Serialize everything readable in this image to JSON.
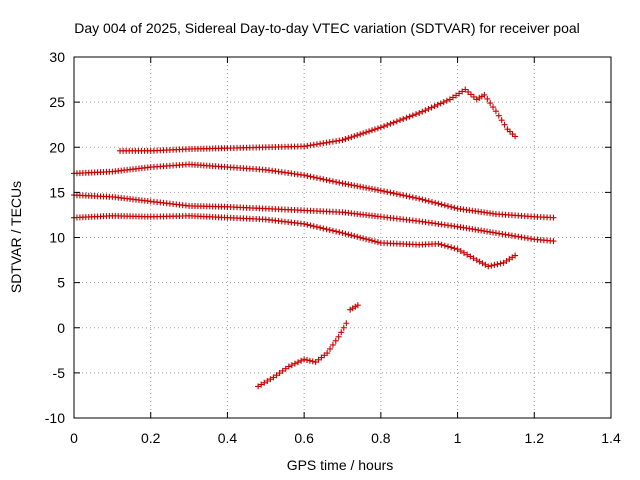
{
  "chart_data": {
    "type": "scatter",
    "title": "Day 004 of 2025, Sidereal Day-to-day VTEC variation (SDTVAR) for receiver poal",
    "xlabel": "GPS time / hours",
    "ylabel": "SDTVAR / TECUs",
    "xlim": [
      0,
      1.4
    ],
    "ylim": [
      -10,
      30
    ],
    "xticks": [
      "0",
      "0.2",
      "0.4",
      "0.6",
      "0.8",
      "1",
      "1.2",
      "1.4"
    ],
    "yticks": [
      "-10",
      "-5",
      "0",
      "5",
      "10",
      "15",
      "20",
      "25",
      "30"
    ],
    "grid": true,
    "marker": "+",
    "color": "#cc0000",
    "series": [
      {
        "name": "arc-a",
        "points": [
          [
            0.12,
            19.6
          ],
          [
            0.2,
            19.6
          ],
          [
            0.3,
            19.8
          ],
          [
            0.4,
            19.9
          ],
          [
            0.5,
            20.0
          ],
          [
            0.6,
            20.1
          ],
          [
            0.7,
            20.8
          ],
          [
            0.8,
            22.2
          ],
          [
            0.9,
            23.8
          ],
          [
            0.98,
            25.3
          ],
          [
            1.02,
            26.4
          ],
          [
            1.05,
            25.3
          ],
          [
            1.07,
            25.8
          ],
          [
            1.1,
            24.0
          ],
          [
            1.13,
            22.0
          ],
          [
            1.15,
            21.2
          ]
        ]
      },
      {
        "name": "arc-b",
        "points": [
          [
            0.0,
            17.1
          ],
          [
            0.1,
            17.3
          ],
          [
            0.2,
            17.8
          ],
          [
            0.3,
            18.1
          ],
          [
            0.4,
            17.8
          ],
          [
            0.5,
            17.5
          ],
          [
            0.6,
            16.9
          ],
          [
            0.7,
            16.0
          ],
          [
            0.8,
            15.2
          ],
          [
            0.9,
            14.3
          ],
          [
            1.0,
            13.2
          ],
          [
            1.1,
            12.6
          ],
          [
            1.2,
            12.3
          ],
          [
            1.25,
            12.2
          ]
        ]
      },
      {
        "name": "arc-c",
        "points": [
          [
            0.0,
            14.7
          ],
          [
            0.1,
            14.5
          ],
          [
            0.2,
            14.0
          ],
          [
            0.3,
            13.5
          ],
          [
            0.4,
            13.4
          ],
          [
            0.5,
            13.2
          ],
          [
            0.6,
            13.0
          ],
          [
            0.7,
            12.8
          ],
          [
            0.8,
            12.3
          ],
          [
            0.9,
            11.8
          ],
          [
            1.0,
            11.2
          ],
          [
            1.1,
            10.5
          ],
          [
            1.2,
            9.8
          ],
          [
            1.25,
            9.6
          ]
        ]
      },
      {
        "name": "arc-d",
        "points": [
          [
            0.0,
            12.2
          ],
          [
            0.1,
            12.4
          ],
          [
            0.2,
            12.3
          ],
          [
            0.3,
            12.4
          ],
          [
            0.4,
            12.2
          ],
          [
            0.5,
            12.0
          ],
          [
            0.6,
            11.5
          ],
          [
            0.7,
            10.5
          ],
          [
            0.8,
            9.4
          ],
          [
            0.9,
            9.2
          ],
          [
            0.95,
            9.3
          ],
          [
            1.0,
            8.7
          ],
          [
            1.05,
            7.5
          ],
          [
            1.08,
            6.8
          ],
          [
            1.12,
            7.2
          ],
          [
            1.15,
            8.0
          ]
        ]
      },
      {
        "name": "arc-e",
        "points": [
          [
            0.48,
            -6.5
          ],
          [
            0.52,
            -5.5
          ],
          [
            0.56,
            -4.3
          ],
          [
            0.6,
            -3.5
          ],
          [
            0.63,
            -3.8
          ],
          [
            0.66,
            -2.8
          ],
          [
            0.69,
            -1.0
          ],
          [
            0.71,
            0.5
          ],
          [
            0.72,
            2.0
          ],
          [
            0.74,
            2.5
          ]
        ]
      }
    ]
  }
}
